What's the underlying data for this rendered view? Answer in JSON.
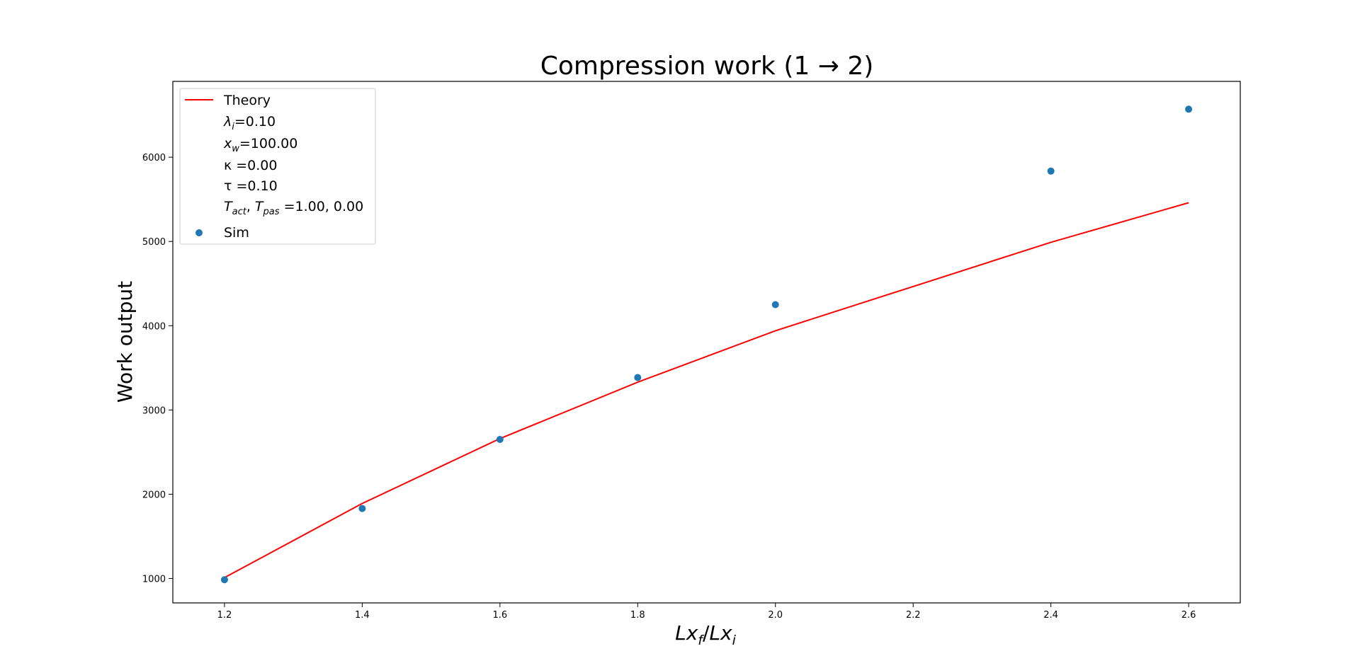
{
  "chart_data": {
    "type": "line",
    "title": "Compression work (1 → 2)",
    "xlabel": {
      "base1": "Lx",
      "sub1": "f",
      "sep": "/",
      "base2": "Lx",
      "sub2": "i"
    },
    "ylabel": "Work output",
    "xlim": [
      1.125,
      2.675
    ],
    "ylim": [
      710,
      6900
    ],
    "xticks": [
      {
        "value": 1.2,
        "label": "1.2"
      },
      {
        "value": 1.4,
        "label": "1.4"
      },
      {
        "value": 1.6,
        "label": "1.6"
      },
      {
        "value": 1.8,
        "label": "1.8"
      },
      {
        "value": 2.0,
        "label": "2.0"
      },
      {
        "value": 2.2,
        "label": "2.2"
      },
      {
        "value": 2.4,
        "label": "2.4"
      },
      {
        "value": 2.6,
        "label": "2.6"
      }
    ],
    "yticks": [
      {
        "value": 1000,
        "label": "1000"
      },
      {
        "value": 2000,
        "label": "2000"
      },
      {
        "value": 3000,
        "label": "3000"
      },
      {
        "value": 4000,
        "label": "4000"
      },
      {
        "value": 5000,
        "label": "5000"
      },
      {
        "value": 6000,
        "label": "6000"
      }
    ],
    "grid": false,
    "legend_position": "upper-left",
    "series": [
      {
        "name": "Theory",
        "kind": "line",
        "color": "#ff0000",
        "x": [
          1.2,
          1.4,
          1.6,
          1.8,
          2.0,
          2.4,
          2.6
        ],
        "y": [
          1010,
          1890,
          2660,
          3330,
          3940,
          4990,
          5460
        ]
      },
      {
        "name": "Sim",
        "kind": "scatter",
        "color": "#1f77b4",
        "x": [
          1.2,
          1.4,
          1.6,
          1.8,
          2.0,
          2.4,
          2.6
        ],
        "y": [
          985,
          1830,
          2650,
          3385,
          4250,
          5835,
          6570
        ]
      }
    ],
    "legend_params": [
      {
        "sym": "λ",
        "sub": "i",
        "text": "=0.10"
      },
      {
        "sym": "x",
        "sub": "w",
        "text": "=100.00"
      },
      {
        "plain": "κ =0.00"
      },
      {
        "plain": "τ =0.10"
      },
      {
        "sym": "T",
        "sub": "act",
        "sep": ", ",
        "sym2": "T",
        "sub2": "pas",
        "text": " =1.00, 0.00"
      }
    ]
  }
}
